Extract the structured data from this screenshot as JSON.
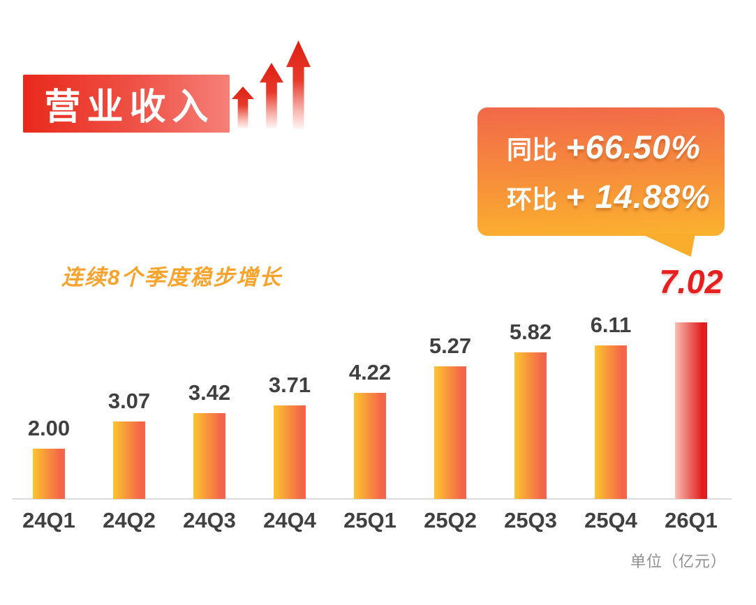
{
  "header": {
    "title": "营业收入",
    "banner_gradient": [
      "#E8291C",
      "#F58078"
    ],
    "arrows_icon": "triple-rising-arrows-icon",
    "arrow_color": "#DE1F12"
  },
  "subtitle": "连续8个季度稳步增长",
  "subtitle_color": "#F9A32C",
  "callout": {
    "line1_label": "同比",
    "line1_value": "+66.50%",
    "line2_label": "环比",
    "line2_value": "+ 14.88%",
    "gradient": [
      "#F2684A",
      "#FBB22E"
    ]
  },
  "unit_label": "单位（亿元）",
  "chart_data": {
    "type": "bar",
    "title": "营业收入",
    "categories": [
      "24Q1",
      "24Q2",
      "24Q3",
      "24Q4",
      "25Q1",
      "25Q2",
      "25Q3",
      "25Q4",
      "26Q1"
    ],
    "values": [
      2.0,
      3.07,
      3.42,
      3.71,
      4.22,
      5.27,
      5.82,
      6.11,
      7.02
    ],
    "value_labels": [
      "2.00",
      "3.07",
      "3.42",
      "3.71",
      "4.22",
      "5.27",
      "5.82",
      "6.11",
      "7.02"
    ],
    "xlabel": "",
    "ylabel": "单位（亿元）",
    "ylim": [
      0,
      7.5
    ],
    "grid": false,
    "legend": false,
    "annotations": [
      "同比 +66.50%",
      "环比 + 14.88%",
      "连续8个季度稳步增长"
    ],
    "highlight_index": 8,
    "bar_gradient": [
      "#FBC52F",
      "#F4664A"
    ],
    "highlight_gradient": [
      "#F9BDB4",
      "#E01E1E"
    ],
    "label_color": "#404040",
    "highlight_label_color": "#E5201F",
    "axis_color": "#DBDBDB"
  }
}
